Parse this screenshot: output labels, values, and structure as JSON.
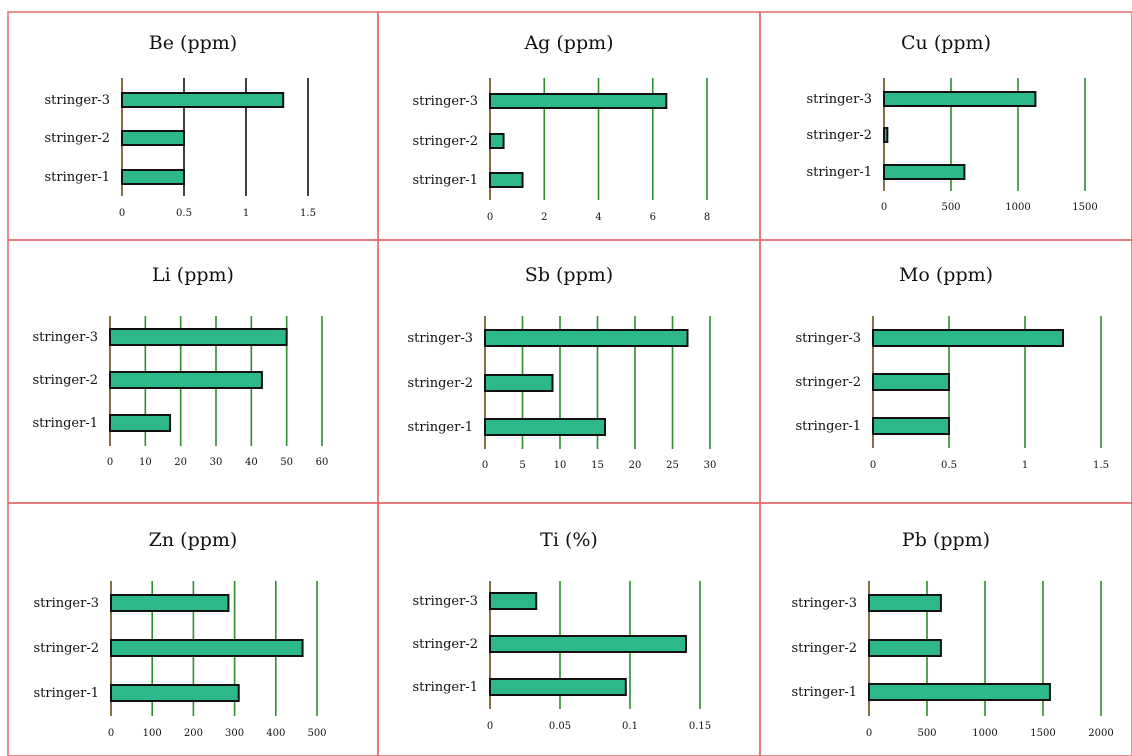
{
  "charts": [
    {
      "title": "Be (ppm)",
      "categories": [
        "stringer-3",
        "stringer-2",
        "stringer-1"
      ],
      "values": [
        1.3,
        0.5,
        0.5
      ],
      "ticks": [
        "0",
        "0.5",
        "1",
        "1.5"
      ],
      "xlim": [
        0,
        1.5
      ],
      "grid_color": "#111111"
    },
    {
      "title": "Ag (ppm)",
      "categories": [
        "stringer-3",
        "stringer-2",
        "stringer-1"
      ],
      "values": [
        6.5,
        0.5,
        1.2
      ],
      "ticks": [
        "0",
        "2",
        "4",
        "6",
        "8"
      ],
      "xlim": [
        0,
        8
      ],
      "grid_color": "#2e8b2e"
    },
    {
      "title": "Cu (ppm)",
      "categories": [
        "stringer-3",
        "stringer-2",
        "stringer-1"
      ],
      "values": [
        1130,
        25,
        600
      ],
      "ticks": [
        "0",
        "500",
        "1000",
        "1500"
      ],
      "xlim": [
        0,
        1500
      ],
      "grid_color": "#2e8b2e"
    },
    {
      "title": "Li (ppm)",
      "categories": [
        "stringer-3",
        "stringer-2",
        "stringer-1"
      ],
      "values": [
        50,
        43,
        17
      ],
      "ticks": [
        "0",
        "10",
        "20",
        "30",
        "40",
        "50",
        "60"
      ],
      "xlim": [
        0,
        60
      ],
      "grid_color": "#2e8b2e"
    },
    {
      "title": "Sb (ppm)",
      "categories": [
        "stringer-3",
        "stringer-2",
        "stringer-1"
      ],
      "values": [
        27,
        9,
        16
      ],
      "ticks": [
        "0",
        "5",
        "10",
        "15",
        "20",
        "25",
        "30"
      ],
      "xlim": [
        0,
        30
      ],
      "grid_color": "#2e8b2e"
    },
    {
      "title": "Mo (ppm)",
      "categories": [
        "stringer-3",
        "stringer-2",
        "stringer-1"
      ],
      "values": [
        1.25,
        0.5,
        0.5
      ],
      "ticks": [
        "0",
        "0.5",
        "1",
        "1.5"
      ],
      "xlim": [
        0,
        1.5
      ],
      "grid_color": "#2e8b2e"
    },
    {
      "title": "Zn (ppm)",
      "categories": [
        "stringer-3",
        "stringer-2",
        "stringer-1"
      ],
      "values": [
        285,
        465,
        310
      ],
      "ticks": [
        "0",
        "100",
        "200",
        "300",
        "400",
        "500"
      ],
      "xlim": [
        0,
        500
      ],
      "grid_color": "#2e8b2e"
    },
    {
      "title": "Ti (%)",
      "categories": [
        "stringer-3",
        "stringer-2",
        "stringer-1"
      ],
      "values": [
        0.033,
        0.14,
        0.097
      ],
      "ticks": [
        "0",
        "0.05",
        "0.1",
        "0.15"
      ],
      "xlim": [
        0,
        0.15
      ],
      "grid_color": "#2e8b2e"
    },
    {
      "title": "Pb (ppm)",
      "categories": [
        "stringer-3",
        "stringer-2",
        "stringer-1"
      ],
      "values": [
        620,
        620,
        1560
      ],
      "ticks": [
        "0",
        "500",
        "1000",
        "1500",
        "2000"
      ],
      "xlim": [
        0,
        2000
      ],
      "grid_color": "#2e8b2e"
    }
  ],
  "chart_data": [
    {
      "type": "bar",
      "orientation": "horizontal",
      "title": "Be (ppm)",
      "categories": [
        "stringer-3",
        "stringer-2",
        "stringer-1"
      ],
      "values": [
        1.3,
        0.5,
        0.5
      ],
      "xlim": [
        0,
        1.5
      ]
    },
    {
      "type": "bar",
      "orientation": "horizontal",
      "title": "Ag (ppm)",
      "categories": [
        "stringer-3",
        "stringer-2",
        "stringer-1"
      ],
      "values": [
        6.5,
        0.5,
        1.2
      ],
      "xlim": [
        0,
        8
      ]
    },
    {
      "type": "bar",
      "orientation": "horizontal",
      "title": "Cu (ppm)",
      "categories": [
        "stringer-3",
        "stringer-2",
        "stringer-1"
      ],
      "values": [
        1130,
        25,
        600
      ],
      "xlim": [
        0,
        1500
      ]
    },
    {
      "type": "bar",
      "orientation": "horizontal",
      "title": "Li (ppm)",
      "categories": [
        "stringer-3",
        "stringer-2",
        "stringer-1"
      ],
      "values": [
        50,
        43,
        17
      ],
      "xlim": [
        0,
        60
      ]
    },
    {
      "type": "bar",
      "orientation": "horizontal",
      "title": "Sb (ppm)",
      "categories": [
        "stringer-3",
        "stringer-2",
        "stringer-1"
      ],
      "values": [
        27,
        9,
        16
      ],
      "xlim": [
        0,
        30
      ]
    },
    {
      "type": "bar",
      "orientation": "horizontal",
      "title": "Mo (ppm)",
      "categories": [
        "stringer-3",
        "stringer-2",
        "stringer-1"
      ],
      "values": [
        1.25,
        0.5,
        0.5
      ],
      "xlim": [
        0,
        1.5
      ]
    },
    {
      "type": "bar",
      "orientation": "horizontal",
      "title": "Zn (ppm)",
      "categories": [
        "stringer-3",
        "stringer-2",
        "stringer-1"
      ],
      "values": [
        285,
        465,
        310
      ],
      "xlim": [
        0,
        500
      ]
    },
    {
      "type": "bar",
      "orientation": "horizontal",
      "title": "Ti (%)",
      "categories": [
        "stringer-3",
        "stringer-2",
        "stringer-1"
      ],
      "values": [
        0.033,
        0.14,
        0.097
      ],
      "xlim": [
        0,
        0.15
      ]
    },
    {
      "type": "bar",
      "orientation": "horizontal",
      "title": "Pb (ppm)",
      "categories": [
        "stringer-3",
        "stringer-2",
        "stringer-1"
      ],
      "values": [
        620,
        620,
        1560
      ],
      "xlim": [
        0,
        2000
      ]
    }
  ],
  "colors": {
    "bar_fill": "#2db889",
    "bar_stroke": "#111111",
    "panel_border": "#e06a6a",
    "axis": "#6b4a1e"
  }
}
